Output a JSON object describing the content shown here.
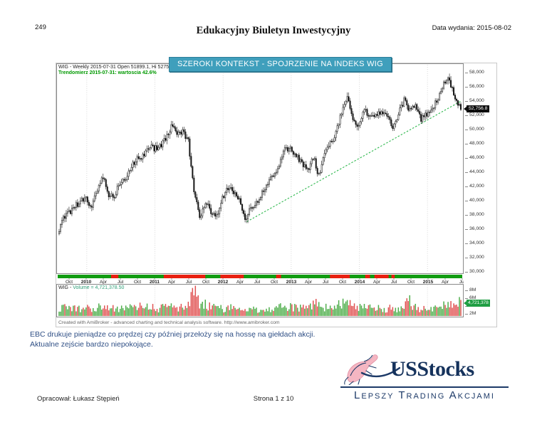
{
  "page": {
    "number": "249",
    "title": "Edukacyjny Biuletyn Inwestycyjny",
    "issue_date": "Data wydania: 2015-08-02"
  },
  "banner": {
    "text": "SZEROKI KONTEKST - SPOJRZENIE NA INDEKS WIG",
    "bg": "#3f9fbc"
  },
  "chart": {
    "legend_line1": "WIG - Weekly 2015-07-31 Open 51899.1, Hi 52750.9, Lo 51287.5, Close 52",
    "legend_line2": "Trendomierz 2015-07-31: wartoscia 42.6%",
    "volume_legend_prefix": "WIG - ",
    "volume_legend_value": "Volume = 4,721,378.50",
    "credit": "Created with AmiBroker - advanced charting and technical analysis software. http://www.amibroker.com",
    "price_tag": "52,756.8",
    "volume_tag": "4,721,378"
  },
  "chart_data": {
    "type": "candlestick+volume",
    "instrument": "WIG",
    "interval": "Weekly",
    "x_start": "2009-08",
    "x_end": "2015-07",
    "y_axis": {
      "min": 30000,
      "max": 58000,
      "step": 2000
    },
    "volume_axis": {
      "labels": [
        [
          "8M",
          8
        ],
        [
          "6M",
          19
        ],
        [
          "4M",
          30
        ],
        [
          "2M",
          41
        ]
      ]
    },
    "year_months": [
      5,
      17,
      29,
      41,
      53,
      65
    ],
    "x_labels": [
      {
        "m": 2,
        "t": "Oct"
      },
      {
        "m": 5,
        "t": "2010",
        "y": 1
      },
      {
        "m": 8,
        "t": "Apr"
      },
      {
        "m": 11,
        "t": "Jul"
      },
      {
        "m": 14,
        "t": "Oct"
      },
      {
        "m": 17,
        "t": "2011",
        "y": 1
      },
      {
        "m": 20,
        "t": "Apr"
      },
      {
        "m": 23,
        "t": "Jul"
      },
      {
        "m": 26,
        "t": "Oct"
      },
      {
        "m": 29,
        "t": "2012",
        "y": 1
      },
      {
        "m": 32,
        "t": "Apr"
      },
      {
        "m": 35,
        "t": "Jul"
      },
      {
        "m": 38,
        "t": "Oct"
      },
      {
        "m": 41,
        "t": "2013",
        "y": 1
      },
      {
        "m": 44,
        "t": "Apr"
      },
      {
        "m": 47,
        "t": "Jul"
      },
      {
        "m": 50,
        "t": "Oct"
      },
      {
        "m": 53,
        "t": "2014",
        "y": 1
      },
      {
        "m": 56,
        "t": "Apr"
      },
      {
        "m": 59,
        "t": "Jul"
      },
      {
        "m": 62,
        "t": "Oct"
      },
      {
        "m": 65,
        "t": "2015",
        "y": 1
      },
      {
        "m": 68,
        "t": "Apr"
      },
      {
        "m": 71,
        "t": "Jul"
      }
    ],
    "monthly_close": [
      35200,
      37300,
      38200,
      38900,
      39900,
      40300,
      38700,
      41600,
      43400,
      40100,
      40700,
      42500,
      42600,
      44700,
      45700,
      46200,
      47500,
      47300,
      47600,
      48700,
      50200,
      49400,
      49700,
      48200,
      41200,
      37400,
      39800,
      38300,
      37800,
      40100,
      41700,
      41000,
      39800,
      37100,
      38900,
      39400,
      40900,
      42600,
      43200,
      44700,
      47400,
      47100,
      46200,
      45100,
      44200,
      46100,
      43400,
      46200,
      47900,
      49600,
      52200,
      54600,
      51600,
      50400,
      52600,
      51900,
      52100,
      52600,
      51800,
      50100,
      52300,
      54100,
      52700,
      53400,
      51400,
      52000,
      53100,
      54200,
      56600,
      57100,
      54100,
      52760
    ],
    "monthly_volume_m": [
      2.6,
      3.0,
      3.4,
      3.1,
      2.7,
      3.1,
      2.8,
      3.3,
      3.7,
      3.6,
      2.7,
      2.8,
      3.0,
      3.2,
      3.4,
      3.9,
      3.1,
      3.3,
      3.0,
      3.6,
      3.4,
      3.2,
      3.3,
      3.6,
      7.9,
      4.6,
      4.0,
      3.5,
      2.7,
      3.1,
      3.2,
      3.0,
      2.9,
      3.3,
      2.9,
      2.5,
      2.7,
      3.1,
      3.0,
      3.3,
      3.5,
      3.7,
      3.2,
      3.4,
      3.5,
      3.9,
      4.3,
      3.4,
      3.1,
      3.7,
      4.6,
      4.3,
      3.5,
      3.4,
      3.1,
      3.7,
      3.3,
      2.9,
      3.1,
      3.3,
      2.9,
      3.5,
      4.9,
      3.3,
      2.9,
      3.1,
      3.3,
      3.5,
      3.9,
      3.7,
      4.1,
      4.7
    ],
    "last_price": 52756.8,
    "last_volume": 4721378.5,
    "trendline": {
      "from_month": 33.2,
      "from_value": 36900,
      "to_month": 71,
      "to_value": 54000,
      "color": "#2db84d"
    },
    "ribbon": {
      "green": "#119c11",
      "red": "#e82010",
      "red_segments": [
        [
          0.132,
          0.15
        ],
        [
          0.262,
          0.365
        ],
        [
          0.402,
          0.46
        ],
        [
          0.54,
          0.552
        ],
        [
          0.673,
          0.722
        ],
        [
          0.76,
          0.772
        ],
        [
          0.783,
          0.818
        ],
        [
          0.825,
          0.833
        ]
      ]
    },
    "candle_color": "#161616",
    "volume_colors": {
      "up": "#4fae4c",
      "down": "#e05252"
    }
  },
  "body_text": [
    "EBC drukuje pieniądze co prędzej czy później przełoży się na hossę na giełdach akcji.",
    "Aktualne zejście bardzo niepokojące."
  ],
  "logo": {
    "name": "USStocks",
    "tagline": "Lepszy Trading Akcjami"
  },
  "footer": {
    "author": "Opracował: Łukasz Stępień",
    "page": "Strona 1 z 10"
  }
}
